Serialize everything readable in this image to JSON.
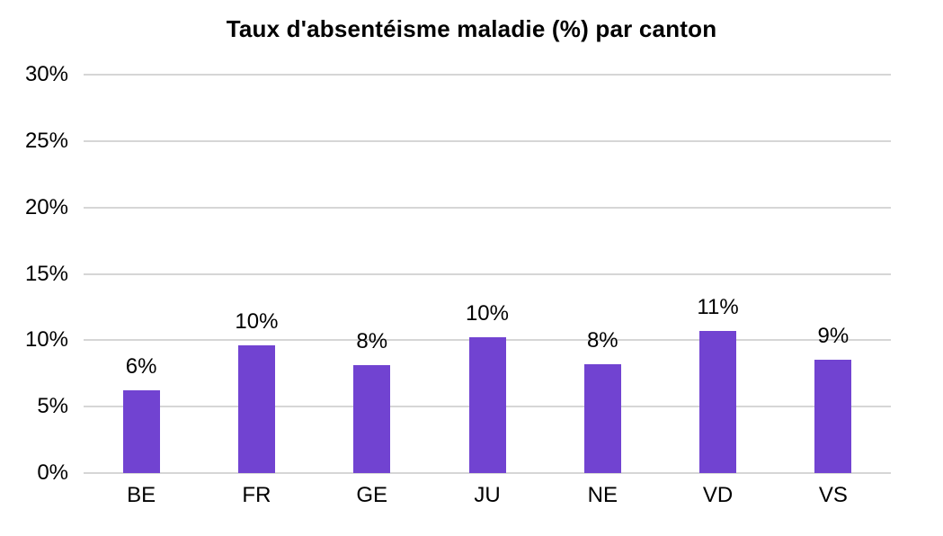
{
  "chart_data": {
    "type": "bar",
    "title": "Taux d'absentéisme maladie (%) par canton",
    "categories": [
      "BE",
      "FR",
      "GE",
      "JU",
      "NE",
      "VD",
      "VS"
    ],
    "values": [
      6.2,
      9.6,
      8.1,
      10.2,
      8.2,
      10.7,
      8.5
    ],
    "data_labels": [
      "6%",
      "10%",
      "8%",
      "10%",
      "8%",
      "11%",
      "9%"
    ],
    "xlabel": "",
    "ylabel": "",
    "ylim": [
      0,
      30
    ],
    "y_ticks": [
      {
        "value": 0,
        "label": "0%"
      },
      {
        "value": 5,
        "label": "5%"
      },
      {
        "value": 10,
        "label": "10%"
      },
      {
        "value": 15,
        "label": "15%"
      },
      {
        "value": 20,
        "label": "20%"
      },
      {
        "value": 25,
        "label": "25%"
      },
      {
        "value": 30,
        "label": "30%"
      }
    ],
    "grid": true,
    "legend": "none",
    "colors": {
      "bar": "#7143D1",
      "gridline": "#D6D6D6",
      "axis_line": "#D6D6D6",
      "text": "#000000",
      "background": "#FFFFFF"
    }
  }
}
